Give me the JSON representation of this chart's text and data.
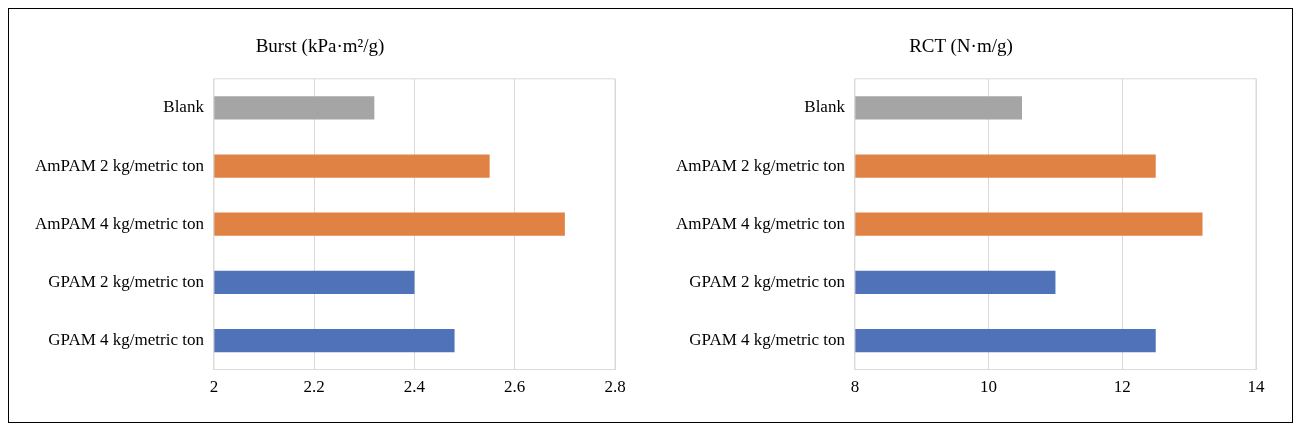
{
  "chart_data": [
    {
      "type": "bar",
      "orientation": "horizontal",
      "title": "Burst (kPa·m²/g)",
      "categories": [
        "Blank",
        "AmPAM 2 kg/metric ton",
        "AmPAM 4 kg/metric ton",
        "GPAM 2 kg/metric ton",
        "GPAM 4 kg/metric ton"
      ],
      "values": [
        2.32,
        2.55,
        2.7,
        2.4,
        2.48
      ],
      "colors": [
        "#a5a5a5",
        "#e08244",
        "#e08244",
        "#4f72b8",
        "#4f72b8"
      ],
      "xlim": [
        2,
        2.8
      ],
      "xticks": [
        2,
        2.2,
        2.4,
        2.6,
        2.8
      ],
      "grid": "x",
      "legend": false
    },
    {
      "type": "bar",
      "orientation": "horizontal",
      "title": "RCT (N·m/g)",
      "categories": [
        "Blank",
        "AmPAM 2 kg/metric ton",
        "AmPAM 4 kg/metric ton",
        "GPAM 2 kg/metric ton",
        "GPAM 4 kg/metric ton"
      ],
      "values": [
        10.5,
        12.5,
        13.2,
        11.0,
        12.5
      ],
      "colors": [
        "#a5a5a5",
        "#e08244",
        "#e08244",
        "#4f72b8",
        "#4f72b8"
      ],
      "xlim": [
        8,
        14
      ],
      "xticks": [
        8,
        10,
        12,
        14
      ],
      "grid": "x",
      "legend": false
    }
  ]
}
